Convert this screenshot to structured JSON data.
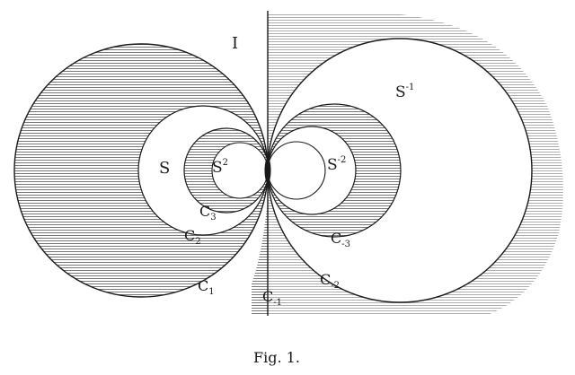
{
  "figure": {
    "caption": "Fig. 1.",
    "ink_color": "#1a1a1a",
    "hatch_color": "#555555"
  },
  "labels": {
    "I": {
      "text": "I"
    },
    "S": {
      "text": "S"
    },
    "S2": {
      "base": "S",
      "sup": "2"
    },
    "C3": {
      "base": "C",
      "sub": "3"
    },
    "C2": {
      "base": "C",
      "sub": "2"
    },
    "C1": {
      "base": "C",
      "sub": "1"
    },
    "Sm1": {
      "base": "S",
      "sup": "-1"
    },
    "Sm2": {
      "base": "S",
      "sup": "-2"
    },
    "Cm3": {
      "base": "C",
      "sub": "-3"
    },
    "Cm2": {
      "base": "C",
      "sub": "-2"
    },
    "Cm1": {
      "base": "C",
      "sub": "-1"
    }
  }
}
